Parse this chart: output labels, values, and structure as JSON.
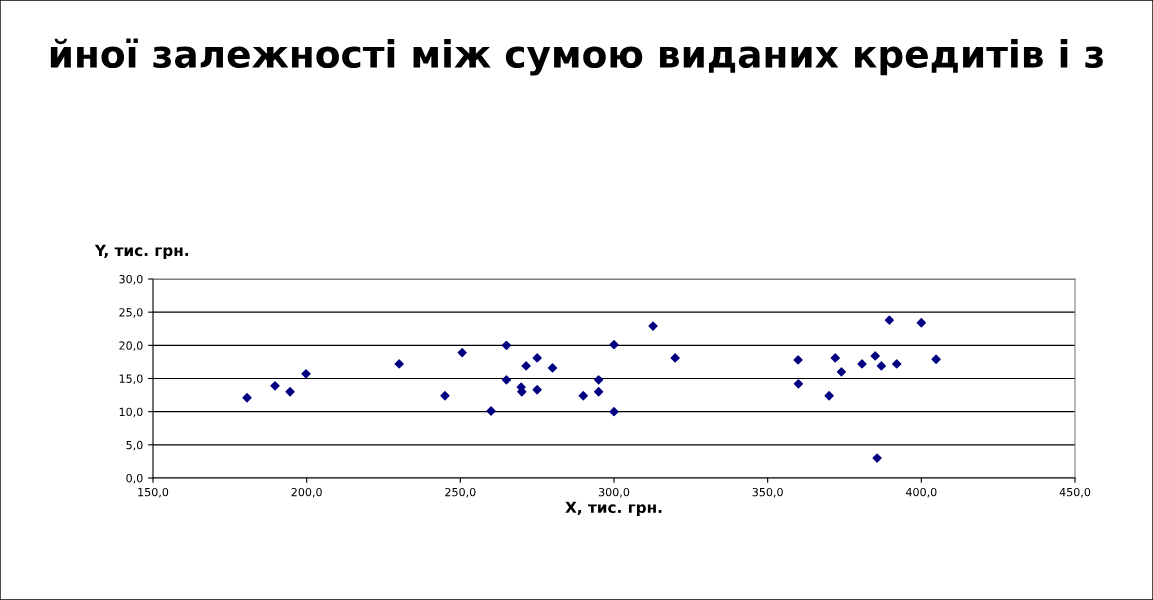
{
  "chart_data": {
    "type": "scatter",
    "title": "йної залежності між сумою виданих кредитів і з",
    "xlabel": "X, тис. грн.",
    "ylabel": "Y, тис. грн.",
    "x": [
      180.6,
      189.7,
      194.6,
      199.8,
      230.1,
      245.0,
      250.6,
      260.0,
      265.0,
      265.0,
      269.8,
      270.0,
      271.4,
      275.0,
      275.0,
      280.0,
      290.0,
      295.0,
      295.0,
      300.0,
      300.0,
      312.7,
      319.9,
      359.9,
      360.0,
      370.0,
      372.0,
      374.0,
      380.7,
      385.0,
      385.6,
      387.0,
      389.6,
      392.0,
      400.0,
      404.8
    ],
    "series": [
      {
        "color": "#000080",
        "values": [
          12.1,
          13.9,
          13.0,
          15.7,
          17.2,
          12.4,
          18.9,
          10.1,
          20.0,
          14.8,
          13.7,
          13.0,
          16.9,
          18.1,
          13.3,
          16.6,
          12.4,
          14.8,
          13.0,
          20.1,
          10.0,
          22.9,
          18.1,
          17.8,
          14.2,
          12.4,
          18.1,
          16.0,
          17.2,
          18.4,
          3.0,
          16.9,
          23.8,
          17.2,
          23.4,
          17.9
        ]
      }
    ],
    "xlim": [
      150,
      450
    ],
    "ylim": [
      0,
      30
    ],
    "xticks": [
      {
        "value": 150,
        "label": "150,0"
      },
      {
        "value": 200,
        "label": "200,0"
      },
      {
        "value": 250,
        "label": "250,0"
      },
      {
        "value": 300,
        "label": "300,0"
      },
      {
        "value": 350,
        "label": "350,0"
      },
      {
        "value": 400,
        "label": "400,0"
      },
      {
        "value": 450,
        "label": "450,0"
      }
    ],
    "yticks": [
      {
        "value": 0,
        "label": "0,0"
      },
      {
        "value": 5,
        "label": "5,0"
      },
      {
        "value": 10,
        "label": "10,0"
      },
      {
        "value": 15,
        "label": "15,0"
      },
      {
        "value": 20,
        "label": "20,0"
      },
      {
        "value": 25,
        "label": "25,0"
      },
      {
        "value": 30,
        "label": "30,0"
      }
    ],
    "grid": "y",
    "marker": "diamond",
    "legend": false
  }
}
